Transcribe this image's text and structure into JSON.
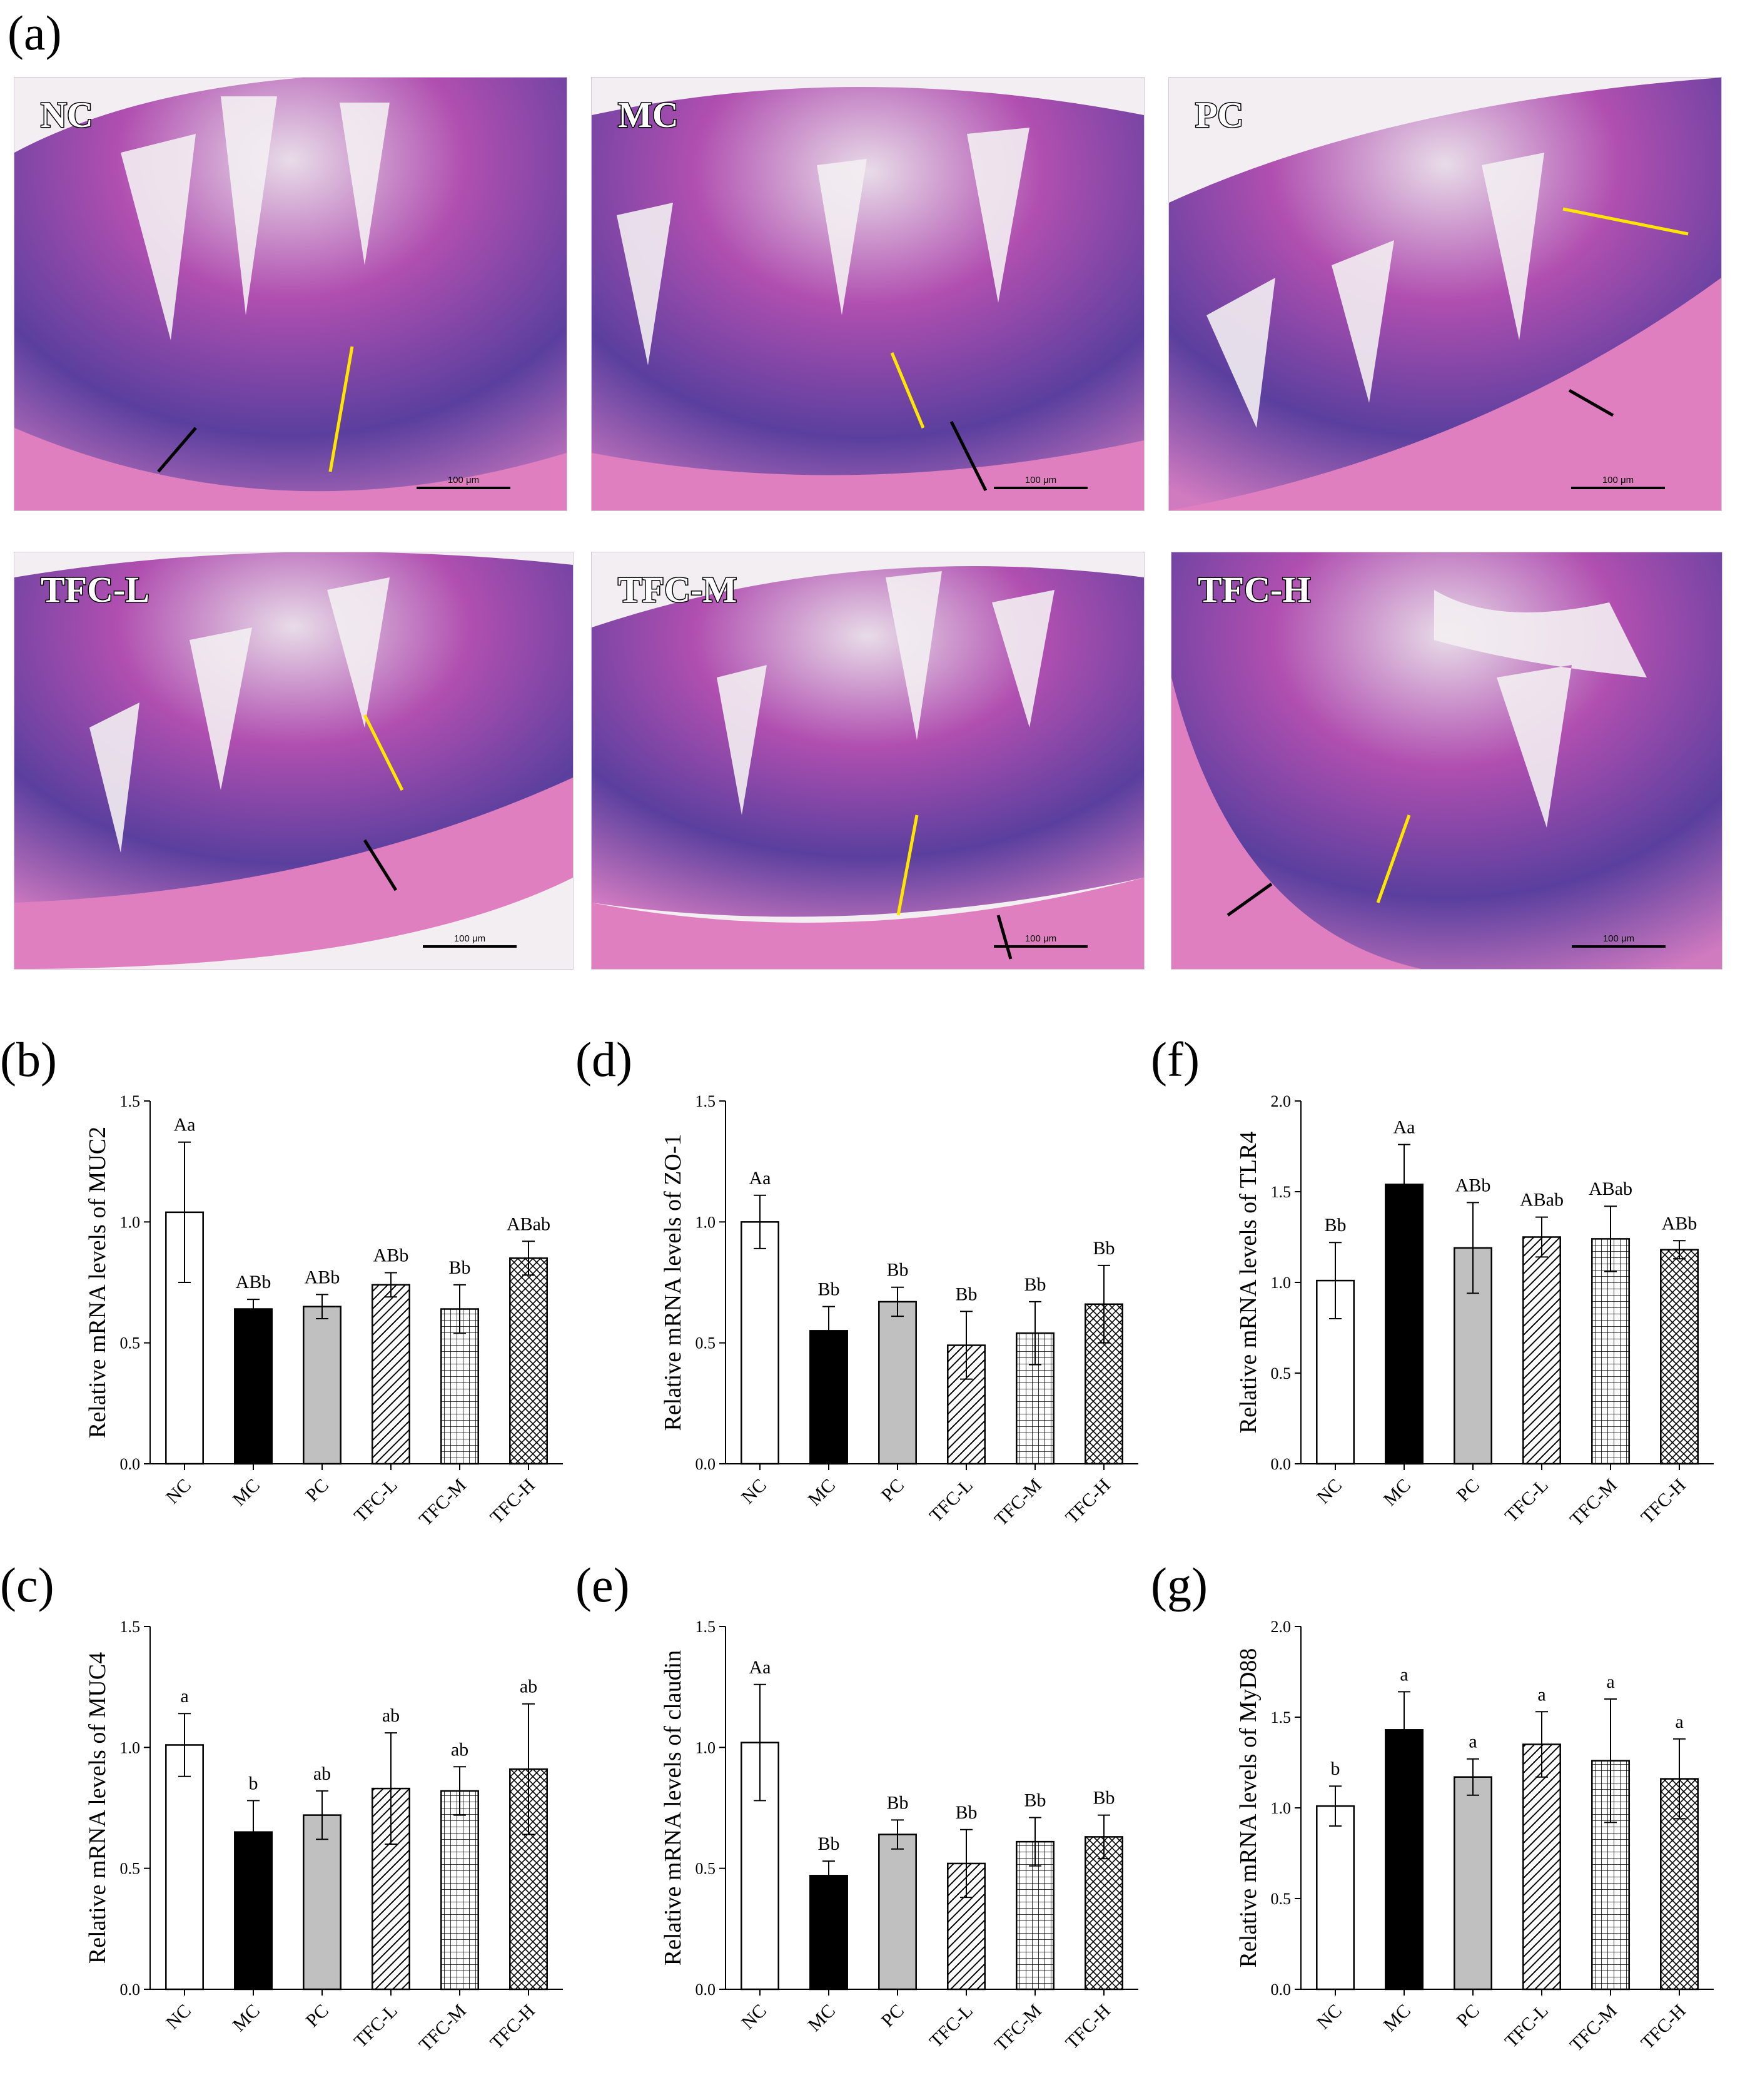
{
  "figure": {
    "panel_a_letter": "(a)",
    "micrographs": [
      {
        "label": "NC",
        "scale": "100 μm"
      },
      {
        "label": "MC",
        "scale": "100 μm"
      },
      {
        "label": "PC",
        "scale": "100 μm"
      },
      {
        "label": "TFC-L",
        "scale": "100 μm"
      },
      {
        "label": "TFC-M",
        "scale": "100 μm"
      },
      {
        "label": "TFC-H",
        "scale": "100 μm"
      }
    ]
  },
  "chart_data": [
    {
      "panel": "(b)",
      "type": "bar",
      "ylabel": "Relative mRNA levels of MUC2",
      "categories": [
        "NC",
        "MC",
        "PC",
        "TFC-L",
        "TFC-M",
        "TFC-H"
      ],
      "values": [
        1.04,
        0.64,
        0.65,
        0.74,
        0.64,
        0.85
      ],
      "errors": [
        0.29,
        0.04,
        0.05,
        0.05,
        0.1,
        0.07
      ],
      "sig": [
        "Aa",
        "ABb",
        "ABb",
        "ABb",
        "Bb",
        "ABab"
      ],
      "ylim": [
        0,
        1.5
      ],
      "yticks": [
        "0.0",
        "0.5",
        "1.0",
        "1.5"
      ]
    },
    {
      "panel": "(c)",
      "type": "bar",
      "ylabel": "Relative mRNA levels of MUC4",
      "categories": [
        "NC",
        "MC",
        "PC",
        "TFC-L",
        "TFC-M",
        "TFC-H"
      ],
      "values": [
        1.01,
        0.65,
        0.72,
        0.83,
        0.82,
        0.91
      ],
      "errors": [
        0.13,
        0.13,
        0.1,
        0.23,
        0.1,
        0.27
      ],
      "sig": [
        "a",
        "b",
        "ab",
        "ab",
        "ab",
        "ab"
      ],
      "ylim": [
        0,
        1.5
      ],
      "yticks": [
        "0.0",
        "0.5",
        "1.0",
        "1.5"
      ]
    },
    {
      "panel": "(d)",
      "type": "bar",
      "ylabel": "Relative mRNA levels of ZO-1",
      "categories": [
        "NC",
        "MC",
        "PC",
        "TFC-L",
        "TFC-M",
        "TFC-H"
      ],
      "values": [
        1.0,
        0.55,
        0.67,
        0.49,
        0.54,
        0.66
      ],
      "errors": [
        0.11,
        0.1,
        0.06,
        0.14,
        0.13,
        0.16
      ],
      "sig": [
        "Aa",
        "Bb",
        "Bb",
        "Bb",
        "Bb",
        "Bb"
      ],
      "ylim": [
        0,
        1.5
      ],
      "yticks": [
        "0.0",
        "0.5",
        "1.0",
        "1.5"
      ]
    },
    {
      "panel": "(e)",
      "type": "bar",
      "ylabel": "Relative mRNA levels of claudin",
      "categories": [
        "NC",
        "MC",
        "PC",
        "TFC-L",
        "TFC-M",
        "TFC-H"
      ],
      "values": [
        1.02,
        0.47,
        0.64,
        0.52,
        0.61,
        0.63
      ],
      "errors": [
        0.24,
        0.06,
        0.06,
        0.14,
        0.1,
        0.09
      ],
      "sig": [
        "Aa",
        "Bb",
        "Bb",
        "Bb",
        "Bb",
        "Bb"
      ],
      "ylim": [
        0,
        1.5
      ],
      "yticks": [
        "0.0",
        "0.5",
        "1.0",
        "1.5"
      ]
    },
    {
      "panel": "(f)",
      "type": "bar",
      "ylabel": "Relative mRNA levels of TLR4",
      "categories": [
        "NC",
        "MC",
        "PC",
        "TFC-L",
        "TFC-M",
        "TFC-H"
      ],
      "values": [
        1.01,
        1.54,
        1.19,
        1.25,
        1.24,
        1.18
      ],
      "errors": [
        0.21,
        0.22,
        0.25,
        0.11,
        0.18,
        0.05
      ],
      "sig": [
        "Bb",
        "Aa",
        "ABb",
        "ABab",
        "ABab",
        "ABb"
      ],
      "ylim": [
        0,
        2.0
      ],
      "yticks": [
        "0.0",
        "0.5",
        "1.0",
        "1.5",
        "2.0"
      ]
    },
    {
      "panel": "(g)",
      "type": "bar",
      "ylabel": "Relative mRNA levels of MyD88",
      "categories": [
        "NC",
        "MC",
        "PC",
        "TFC-L",
        "TFC-M",
        "TFC-H"
      ],
      "values": [
        1.01,
        1.43,
        1.17,
        1.35,
        1.26,
        1.16
      ],
      "errors": [
        0.11,
        0.21,
        0.1,
        0.18,
        0.34,
        0.22
      ],
      "sig": [
        "b",
        "a",
        "a",
        "a",
        "a",
        "a"
      ],
      "ylim": [
        0,
        2.0
      ],
      "yticks": [
        "0.0",
        "0.5",
        "1.0",
        "1.5",
        "2.0"
      ]
    }
  ]
}
